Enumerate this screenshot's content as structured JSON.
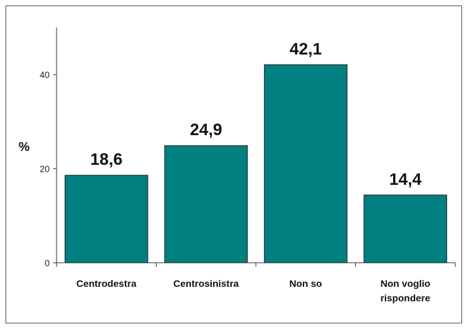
{
  "chart_data": {
    "type": "bar",
    "title": "",
    "xlabel": "",
    "ylabel": "%",
    "categories": [
      "Centrodestra",
      "Centrosinistra",
      "Non so",
      "Non voglio rispondere"
    ],
    "category_lines": [
      [
        "Centrodestra"
      ],
      [
        "Centrosinistra"
      ],
      [
        "Non so"
      ],
      [
        "Non voglio",
        "rispondere"
      ]
    ],
    "values": [
      18.6,
      24.9,
      42.1,
      14.4
    ],
    "value_labels": [
      "18,6",
      "24,9",
      "42,1",
      "14,4"
    ],
    "ylim": [
      0,
      50
    ],
    "yticks": [
      0,
      20,
      40
    ],
    "grid": false,
    "legend": "none",
    "bar_color": "#008080",
    "bar_edge_color": "#1a1a1a"
  }
}
